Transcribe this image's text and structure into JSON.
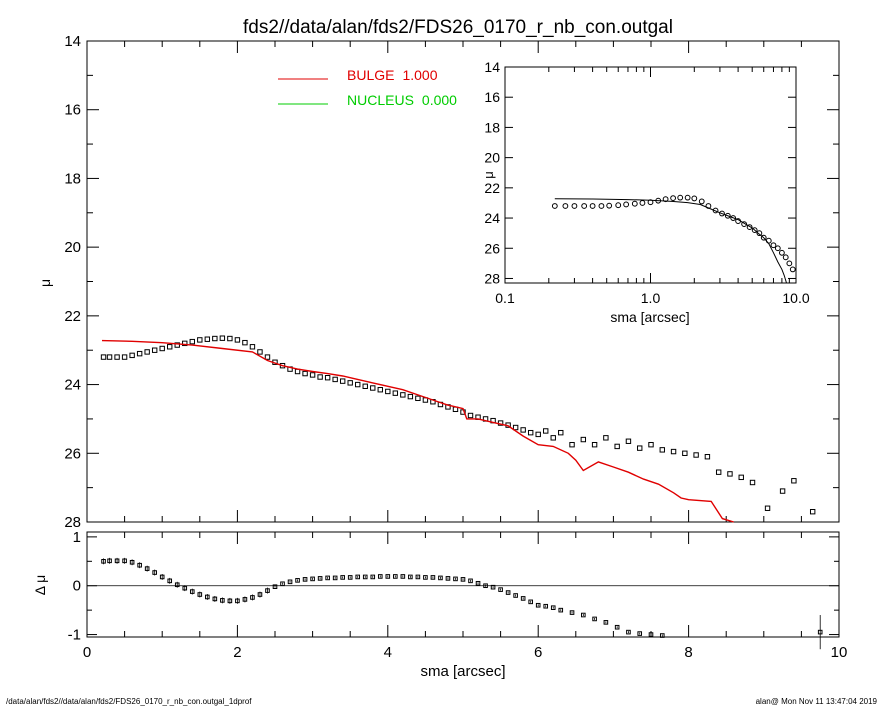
{
  "title": "fds2//data/alan/fds2/FDS26_0170_r_nb_con.outgal",
  "footer": {
    "left": "/data/alan/fds2//data/alan/fds2/FDS26_0170_r_nb_con.outgal_1dprof",
    "right": "alan@  Mon Nov 11 13:47:04 2019"
  },
  "colors": {
    "bulge": "#e00000",
    "nucleus": "#00cc00",
    "data": "#000000"
  },
  "chart_data": [
    {
      "id": "main",
      "type": "scatter",
      "title": "fds2//data/alan/fds2/FDS26_0170_r_nb_con.outgal",
      "xlabel": "",
      "ylabel": "μ",
      "xlim": [
        0,
        10
      ],
      "ylim": [
        28,
        14
      ],
      "y_inverted": true,
      "yticks": [
        "14",
        "16",
        "18",
        "20",
        "22",
        "24",
        "26",
        "28"
      ],
      "legend": {
        "placement": "top-center",
        "entries": [
          {
            "name": "BULGE",
            "value": "1.000",
            "color": "#e00000"
          },
          {
            "name": "NUCLEUS",
            "value": "0.000",
            "color": "#00cc00"
          }
        ]
      },
      "series": [
        {
          "name": "data",
          "kind": "points",
          "x": [
            0.22,
            0.3,
            0.4,
            0.5,
            0.6,
            0.7,
            0.8,
            0.9,
            1.0,
            1.1,
            1.2,
            1.3,
            1.4,
            1.5,
            1.6,
            1.7,
            1.8,
            1.9,
            2.0,
            2.1,
            2.2,
            2.3,
            2.4,
            2.5,
            2.6,
            2.7,
            2.8,
            2.9,
            3.0,
            3.1,
            3.2,
            3.3,
            3.4,
            3.5,
            3.6,
            3.7,
            3.8,
            3.9,
            4.0,
            4.1,
            4.2,
            4.3,
            4.4,
            4.5,
            4.6,
            4.7,
            4.8,
            4.9,
            5.0,
            5.1,
            5.2,
            5.3,
            5.4,
            5.5,
            5.6,
            5.7,
            5.8,
            5.9,
            6.0,
            6.1,
            6.2,
            6.3,
            6.45,
            6.6,
            6.75,
            6.9,
            7.05,
            7.2,
            7.35,
            7.5,
            7.65,
            7.8,
            7.95,
            8.1,
            8.25,
            8.4,
            8.55,
            8.7,
            8.85,
            9.05,
            9.25,
            9.4,
            9.65
          ],
          "y": [
            23.2,
            23.2,
            23.2,
            23.2,
            23.15,
            23.1,
            23.05,
            23.0,
            22.95,
            22.9,
            22.85,
            22.8,
            22.75,
            22.7,
            22.68,
            22.66,
            22.65,
            22.66,
            22.7,
            22.78,
            22.9,
            23.05,
            23.2,
            23.35,
            23.45,
            23.55,
            23.62,
            23.68,
            23.72,
            23.78,
            23.8,
            23.85,
            23.9,
            23.95,
            24.0,
            24.05,
            24.1,
            24.15,
            24.2,
            24.25,
            24.3,
            24.35,
            24.4,
            24.45,
            24.5,
            24.58,
            24.65,
            24.72,
            24.8,
            24.9,
            24.95,
            25.0,
            25.05,
            25.12,
            25.18,
            25.25,
            25.32,
            25.4,
            25.45,
            25.35,
            25.55,
            25.4,
            25.75,
            25.6,
            25.75,
            25.55,
            25.8,
            25.65,
            25.85,
            25.75,
            25.9,
            25.95,
            26.0,
            26.05,
            26.1,
            26.55,
            26.6,
            26.7,
            26.85,
            27.6,
            27.1,
            26.8,
            27.7
          ]
        },
        {
          "name": "bulge model",
          "kind": "line",
          "color": "#e00000",
          "x": [
            0.2,
            0.6,
            1.0,
            1.4,
            1.8,
            2.2,
            2.4,
            2.6,
            2.8,
            3.0,
            3.2,
            3.4,
            3.6,
            3.8,
            4.0,
            4.2,
            4.4,
            4.6,
            4.8,
            4.85,
            5.0,
            5.05,
            5.2,
            5.4,
            5.6,
            5.8,
            6.0,
            6.2,
            6.4,
            6.5,
            6.6,
            6.8,
            7.0,
            7.2,
            7.4,
            7.6,
            7.8,
            7.9,
            8.0,
            8.3,
            8.45,
            8.6
          ],
          "y": [
            22.72,
            22.74,
            22.78,
            22.85,
            22.95,
            23.05,
            23.3,
            23.45,
            23.55,
            23.62,
            23.68,
            23.75,
            23.85,
            23.95,
            24.05,
            24.15,
            24.3,
            24.45,
            24.6,
            24.62,
            24.7,
            25.0,
            25.0,
            25.1,
            25.2,
            25.5,
            25.75,
            25.8,
            26.0,
            26.2,
            26.5,
            26.25,
            26.4,
            26.55,
            26.75,
            26.9,
            27.15,
            27.3,
            27.35,
            27.4,
            27.9,
            28.3
          ]
        }
      ]
    },
    {
      "id": "residual",
      "type": "scatter",
      "xlabel": "sma [arcsec]",
      "ylabel": "Δ μ",
      "xlim": [
        0,
        10
      ],
      "ylim": [
        -1.05,
        1.1
      ],
      "xticks": [
        "0",
        "2",
        "4",
        "6",
        "8",
        "10"
      ],
      "yticks": [
        "1",
        "0",
        "-1"
      ],
      "series": [
        {
          "name": "residual",
          "kind": "points",
          "x": [
            0.22,
            0.3,
            0.4,
            0.5,
            0.6,
            0.7,
            0.8,
            0.9,
            1.0,
            1.1,
            1.2,
            1.3,
            1.4,
            1.5,
            1.6,
            1.7,
            1.8,
            1.9,
            2.0,
            2.1,
            2.2,
            2.3,
            2.4,
            2.5,
            2.6,
            2.7,
            2.8,
            2.9,
            3.0,
            3.1,
            3.2,
            3.3,
            3.4,
            3.5,
            3.6,
            3.7,
            3.8,
            3.9,
            4.0,
            4.1,
            4.2,
            4.3,
            4.4,
            4.5,
            4.6,
            4.7,
            4.8,
            4.9,
            5.0,
            5.1,
            5.2,
            5.3,
            5.4,
            5.5,
            5.6,
            5.7,
            5.8,
            5.9,
            6.0,
            6.1,
            6.2,
            6.3,
            6.45,
            6.6,
            6.75,
            6.9,
            7.05,
            7.2,
            7.35,
            7.5,
            7.65,
            9.75
          ],
          "y": [
            0.5,
            0.51,
            0.51,
            0.51,
            0.48,
            0.42,
            0.35,
            0.27,
            0.18,
            0.1,
            0.02,
            -0.05,
            -0.12,
            -0.18,
            -0.23,
            -0.27,
            -0.3,
            -0.31,
            -0.31,
            -0.28,
            -0.24,
            -0.18,
            -0.1,
            -0.02,
            0.04,
            0.08,
            0.11,
            0.13,
            0.14,
            0.15,
            0.16,
            0.16,
            0.17,
            0.17,
            0.18,
            0.18,
            0.18,
            0.19,
            0.19,
            0.19,
            0.19,
            0.18,
            0.18,
            0.17,
            0.17,
            0.16,
            0.15,
            0.14,
            0.13,
            0.1,
            0.05,
            0.0,
            -0.03,
            -0.08,
            -0.14,
            -0.2,
            -0.26,
            -0.33,
            -0.4,
            -0.42,
            -0.45,
            -0.5,
            -0.55,
            -0.6,
            -0.68,
            -0.75,
            -0.85,
            -0.95,
            -0.98,
            -1.0,
            -1.02,
            -0.95
          ]
        }
      ],
      "reference_line": 0
    },
    {
      "id": "inset",
      "type": "scatter",
      "xlabel": "sma [arcsec]",
      "ylabel": "μ",
      "xscale": "log",
      "xlim": [
        0.1,
        10.0
      ],
      "ylim": [
        28.3,
        14
      ],
      "y_inverted": true,
      "xticks": [
        "0.1",
        "1.0",
        "10.0"
      ],
      "yticks": [
        "14",
        "16",
        "18",
        "20",
        "22",
        "24",
        "26",
        "28"
      ],
      "series": [
        {
          "name": "data",
          "kind": "points",
          "x": [
            0.22,
            0.26,
            0.3,
            0.35,
            0.4,
            0.46,
            0.52,
            0.6,
            0.68,
            0.78,
            0.88,
            1.0,
            1.13,
            1.27,
            1.43,
            1.6,
            1.8,
            2.0,
            2.25,
            2.5,
            2.8,
            3.1,
            3.4,
            3.7,
            4.0,
            4.4,
            4.8,
            5.2,
            5.6,
            6.0,
            6.5,
            7.0,
            7.5,
            8.0,
            8.5,
            9.0,
            9.5
          ],
          "y": [
            23.2,
            23.2,
            23.2,
            23.2,
            23.2,
            23.2,
            23.18,
            23.15,
            23.1,
            23.05,
            23.0,
            22.95,
            22.85,
            22.75,
            22.68,
            22.65,
            22.65,
            22.7,
            22.9,
            23.2,
            23.5,
            23.7,
            23.85,
            24.0,
            24.2,
            24.4,
            24.6,
            24.8,
            25.0,
            25.3,
            25.5,
            25.8,
            26.0,
            26.3,
            26.6,
            27.0,
            27.4
          ]
        },
        {
          "name": "bulge model",
          "kind": "line",
          "color": "#000000",
          "x": [
            0.22,
            0.4,
            0.7,
            1.0,
            1.4,
            1.8,
            2.2,
            2.6,
            3.0,
            3.5,
            4.0,
            4.5,
            5.0,
            5.5,
            6.0,
            6.5,
            7.0,
            7.5,
            8.0,
            8.3,
            8.6
          ],
          "y": [
            22.72,
            22.74,
            22.78,
            22.82,
            22.9,
            22.98,
            23.1,
            23.4,
            23.65,
            23.9,
            24.1,
            24.4,
            24.65,
            25.0,
            25.3,
            25.7,
            26.3,
            26.9,
            27.4,
            27.8,
            28.3
          ]
        }
      ]
    }
  ]
}
